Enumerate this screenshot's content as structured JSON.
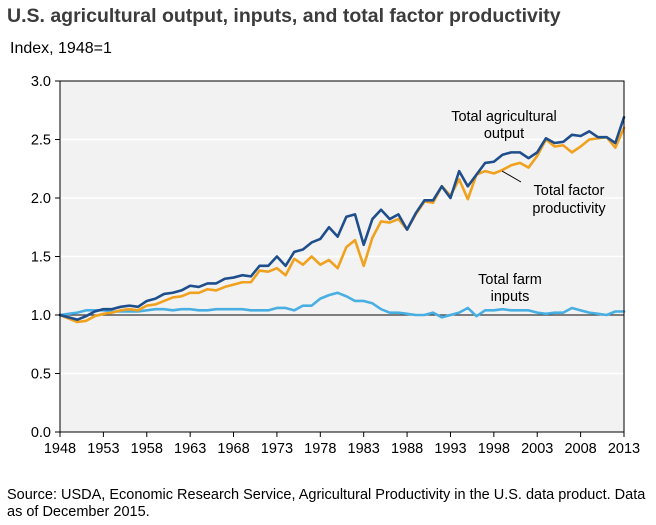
{
  "title": "U.S. agricultural output, inputs, and total factor productivity",
  "subtitle": "Index, 1948=1",
  "source": "Source: USDA, Economic Research Service, Agricultural Productivity in the U.S. data product. Data as of December 2015.",
  "chart_data": {
    "type": "line",
    "title": "U.S. agricultural output, inputs, and total factor productivity",
    "ylabel": "Index, 1948=1",
    "xlabel": "",
    "xlim": [
      1948,
      2013
    ],
    "ylim": [
      0,
      3.0
    ],
    "y_ticks": [
      0.0,
      0.5,
      1.0,
      1.5,
      2.0,
      2.5,
      3.0
    ],
    "y_tick_labels": [
      "0.0",
      "0.5",
      "1.0",
      "1.5",
      "2.0",
      "2.5",
      "3.0"
    ],
    "x_ticks": [
      1948,
      1953,
      1958,
      1963,
      1968,
      1973,
      1978,
      1983,
      1988,
      1993,
      1998,
      2003,
      2008,
      2013
    ],
    "x_tick_labels": [
      "1948",
      "1953",
      "1958",
      "1963",
      "1968",
      "1973",
      "1978",
      "1983",
      "1988",
      "1993",
      "1998",
      "2003",
      "2008",
      "2013"
    ],
    "reference_line": 1.0,
    "grid": "horizontal",
    "colors": {
      "output": "#1f4e8c",
      "tfp": "#f0a11e",
      "inputs": "#49afe3",
      "plot_bg": "#f2f2f2",
      "grid": "#ffffff",
      "axis": "#000000"
    },
    "annotations": {
      "output": [
        "Total agricultural",
        "output"
      ],
      "tfp": [
        "Total factor",
        "productivity"
      ],
      "inputs": [
        "Total farm",
        "inputs"
      ]
    },
    "x": [
      1948,
      1949,
      1950,
      1951,
      1952,
      1953,
      1954,
      1955,
      1956,
      1957,
      1958,
      1959,
      1960,
      1961,
      1962,
      1963,
      1964,
      1965,
      1966,
      1967,
      1968,
      1969,
      1970,
      1971,
      1972,
      1973,
      1974,
      1975,
      1976,
      1977,
      1978,
      1979,
      1980,
      1981,
      1982,
      1983,
      1984,
      1985,
      1986,
      1987,
      1988,
      1989,
      1990,
      1991,
      1992,
      1993,
      1994,
      1995,
      1996,
      1997,
      1998,
      1999,
      2000,
      2001,
      2002,
      2003,
      2004,
      2005,
      2006,
      2007,
      2008,
      2009,
      2010,
      2011,
      2012,
      2013
    ],
    "series": [
      {
        "name": "Total agricultural output",
        "key": "output",
        "values": [
          1.0,
          0.98,
          0.96,
          0.99,
          1.03,
          1.05,
          1.05,
          1.07,
          1.08,
          1.07,
          1.12,
          1.14,
          1.18,
          1.19,
          1.21,
          1.25,
          1.24,
          1.27,
          1.27,
          1.31,
          1.32,
          1.34,
          1.33,
          1.42,
          1.42,
          1.5,
          1.42,
          1.54,
          1.56,
          1.62,
          1.65,
          1.75,
          1.67,
          1.84,
          1.86,
          1.6,
          1.82,
          1.9,
          1.82,
          1.86,
          1.73,
          1.87,
          1.98,
          1.98,
          2.1,
          2.0,
          2.23,
          2.1,
          2.2,
          2.3,
          2.31,
          2.37,
          2.39,
          2.39,
          2.34,
          2.39,
          2.51,
          2.47,
          2.48,
          2.54,
          2.53,
          2.57,
          2.52,
          2.52,
          2.47,
          2.69
        ]
      },
      {
        "name": "Total factor productivity",
        "key": "tfp",
        "values": [
          1.0,
          0.97,
          0.94,
          0.95,
          0.99,
          1.01,
          1.02,
          1.04,
          1.05,
          1.04,
          1.08,
          1.09,
          1.12,
          1.15,
          1.16,
          1.19,
          1.19,
          1.22,
          1.21,
          1.24,
          1.26,
          1.28,
          1.28,
          1.38,
          1.37,
          1.4,
          1.34,
          1.48,
          1.43,
          1.5,
          1.43,
          1.47,
          1.4,
          1.58,
          1.64,
          1.42,
          1.66,
          1.8,
          1.79,
          1.82,
          1.73,
          1.86,
          1.97,
          1.96,
          2.1,
          2.02,
          2.16,
          1.99,
          2.2,
          2.23,
          2.21,
          2.24,
          2.28,
          2.3,
          2.26,
          2.36,
          2.5,
          2.44,
          2.45,
          2.39,
          2.44,
          2.5,
          2.51,
          2.52,
          2.43,
          2.6
        ]
      },
      {
        "name": "Total farm inputs",
        "key": "inputs",
        "values": [
          1.0,
          1.01,
          1.02,
          1.04,
          1.04,
          1.04,
          1.03,
          1.03,
          1.03,
          1.03,
          1.04,
          1.05,
          1.05,
          1.04,
          1.05,
          1.05,
          1.04,
          1.04,
          1.05,
          1.05,
          1.05,
          1.05,
          1.04,
          1.04,
          1.04,
          1.06,
          1.06,
          1.04,
          1.08,
          1.08,
          1.14,
          1.17,
          1.19,
          1.16,
          1.12,
          1.12,
          1.1,
          1.05,
          1.02,
          1.02,
          1.01,
          1.0,
          1.0,
          1.02,
          0.98,
          1.0,
          1.02,
          1.06,
          0.99,
          1.04,
          1.04,
          1.05,
          1.04,
          1.04,
          1.04,
          1.02,
          1.01,
          1.02,
          1.02,
          1.06,
          1.04,
          1.02,
          1.01,
          1.0,
          1.03,
          1.03
        ]
      }
    ]
  }
}
